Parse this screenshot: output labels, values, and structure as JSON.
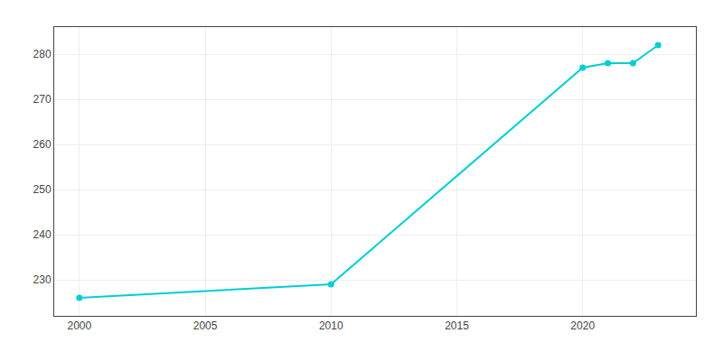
{
  "chart_data": {
    "type": "line",
    "x": [
      2000,
      2010,
      2020,
      2021,
      2022,
      2023
    ],
    "values": [
      226,
      229,
      277,
      278,
      278,
      282
    ],
    "color": "#00CED1",
    "marker": "circle",
    "xlim": [
      1999,
      2024.5
    ],
    "ylim": [
      222,
      286
    ],
    "xticks": [
      2000,
      2005,
      2010,
      2015,
      2020
    ],
    "yticks": [
      230,
      240,
      250,
      260,
      270,
      280
    ],
    "grid": true
  }
}
